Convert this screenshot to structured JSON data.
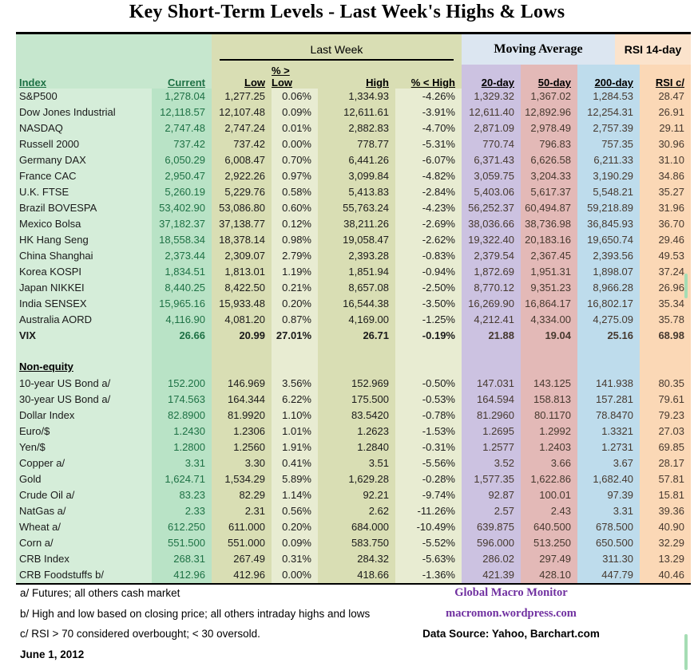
{
  "title": "Key Short-Term Levels -  Last Week's Highs & Lows",
  "table": {
    "groups": {
      "last_week": "Last Week",
      "moving_average": "Moving Average",
      "rsi": "RSI 14-day"
    },
    "columns": [
      "Index",
      "Current",
      "Low",
      "% > Low",
      "High",
      "% < High",
      "20-day",
      "50-day",
      "200-day",
      "RSI c/"
    ],
    "sections": [
      {
        "label": "",
        "rows": [
          [
            "S&P500",
            "1,278.04",
            "1,277.25",
            "0.06%",
            "1,334.93",
            "-4.26%",
            "1,329.32",
            "1,367.02",
            "1,284.53",
            "28.47"
          ],
          [
            "Dow Jones Industrial",
            "12,118.57",
            "12,107.48",
            "0.09%",
            "12,611.61",
            "-3.91%",
            "12,611.40",
            "12,892.96",
            "12,254.31",
            "26.91"
          ],
          [
            "NASDAQ",
            "2,747.48",
            "2,747.24",
            "0.01%",
            "2,882.83",
            "-4.70%",
            "2,871.09",
            "2,978.49",
            "2,757.39",
            "29.11"
          ],
          [
            "Russell 2000",
            "737.42",
            "737.42",
            "0.00%",
            "778.77",
            "-5.31%",
            "770.74",
            "796.83",
            "757.35",
            "30.96"
          ],
          [
            "Germany DAX",
            "6,050.29",
            "6,008.47",
            "0.70%",
            "6,441.26",
            "-6.07%",
            "6,371.43",
            "6,626.58",
            "6,211.33",
            "31.10"
          ],
          [
            "France CAC",
            "2,950.47",
            "2,922.26",
            "0.97%",
            "3,099.84",
            "-4.82%",
            "3,059.75",
            "3,204.33",
            "3,190.29",
            "34.86"
          ],
          [
            "U.K. FTSE",
            "5,260.19",
            "5,229.76",
            "0.58%",
            "5,413.83",
            "-2.84%",
            "5,403.06",
            "5,617.37",
            "5,548.21",
            "35.27"
          ],
          [
            "Brazil BOVESPA",
            "53,402.90",
            "53,086.80",
            "0.60%",
            "55,763.24",
            "-4.23%",
            "56,252.37",
            "60,494.87",
            "59,218.89",
            "31.96"
          ],
          [
            "Mexico Bolsa",
            "37,182.37",
            "37,138.77",
            "0.12%",
            "38,211.26",
            "-2.69%",
            "38,036.66",
            "38,736.98",
            "36,845.93",
            "36.70"
          ],
          [
            "HK  Hang Seng",
            "18,558.34",
            "18,378.14",
            "0.98%",
            "19,058.47",
            "-2.62%",
            "19,322.40",
            "20,183.16",
            "19,650.74",
            "29.46"
          ],
          [
            "China Shanghai",
            "2,373.44",
            "2,309.07",
            "2.79%",
            "2,393.28",
            "-0.83%",
            "2,379.54",
            "2,367.45",
            "2,393.56",
            "49.53"
          ],
          [
            "Korea KOSPI",
            "1,834.51",
            "1,813.01",
            "1.19%",
            "1,851.94",
            "-0.94%",
            "1,872.69",
            "1,951.31",
            "1,898.07",
            "37.24"
          ],
          [
            "Japan NIKKEI",
            "8,440.25",
            "8,422.50",
            "0.21%",
            "8,657.08",
            "-2.50%",
            "8,770.12",
            "9,351.23",
            "8,966.28",
            "26.96"
          ],
          [
            "India SENSEX",
            "15,965.16",
            "15,933.48",
            "0.20%",
            "16,544.38",
            "-3.50%",
            "16,269.90",
            "16,864.17",
            "16,802.17",
            "35.34"
          ],
          [
            "Australia AORD",
            "4,116.90",
            "4,081.20",
            "0.87%",
            "4,169.00",
            "-1.25%",
            "4,212.41",
            "4,334.00",
            "4,275.09",
            "35.78"
          ],
          [
            "VIX",
            "26.66",
            "20.99",
            "27.01%",
            "26.71",
            "-0.19%",
            "21.88",
            "19.04",
            "25.16",
            "68.98"
          ]
        ]
      },
      {
        "label": "Non-equity",
        "rows": [
          [
            "10-year US Bond  a/",
            "152.200",
            "146.969",
            "3.56%",
            "152.969",
            "-0.50%",
            "147.031",
            "143.125",
            "141.938",
            "80.35"
          ],
          [
            "30-year US Bond  a/",
            "174.563",
            "164.344",
            "6.22%",
            "175.500",
            "-0.53%",
            "164.594",
            "158.813",
            "157.281",
            "79.61"
          ],
          [
            "Dollar Index",
            "82.8900",
            "81.9920",
            "1.10%",
            "83.5420",
            "-0.78%",
            "81.2960",
            "80.1170",
            "78.8470",
            "79.23"
          ],
          [
            "Euro/$",
            "1.2430",
            "1.2306",
            "1.01%",
            "1.2623",
            "-1.53%",
            "1.2695",
            "1.2992",
            "1.3321",
            "27.03"
          ],
          [
            "Yen/$",
            "1.2800",
            "1.2560",
            "1.91%",
            "1.2840",
            "-0.31%",
            "1.2577",
            "1.2403",
            "1.2731",
            "69.85"
          ],
          [
            "Copper  a/",
            "3.31",
            "3.30",
            "0.41%",
            "3.51",
            "-5.56%",
            "3.52",
            "3.66",
            "3.67",
            "28.17"
          ],
          [
            "Gold",
            "1,624.71",
            "1,534.29",
            "5.89%",
            "1,629.28",
            "-0.28%",
            "1,577.35",
            "1,622.86",
            "1,682.40",
            "57.81"
          ],
          [
            "Crude Oil  a/",
            "83.23",
            "82.29",
            "1.14%",
            "92.21",
            "-9.74%",
            "92.87",
            "100.01",
            "97.39",
            "15.81"
          ],
          [
            "NatGas  a/",
            "2.33",
            "2.31",
            "0.56%",
            "2.62",
            "-11.26%",
            "2.57",
            "2.43",
            "3.31",
            "39.36"
          ],
          [
            "Wheat  a/",
            "612.250",
            "611.000",
            "0.20%",
            "684.000",
            "-10.49%",
            "639.875",
            "640.500",
            "678.500",
            "40.90"
          ],
          [
            "Corn  a/",
            "551.500",
            "551.000",
            "0.09%",
            "583.750",
            "-5.52%",
            "596.000",
            "513.250",
            "650.500",
            "32.29"
          ],
          [
            "CRB Index",
            "268.31",
            "267.49",
            "0.31%",
            "284.32",
            "-5.63%",
            "286.02",
            "297.49",
            "311.30",
            "13.29"
          ],
          [
            "CRB Foodstuffs  b/",
            "412.96",
            "412.96",
            "0.00%",
            "418.66",
            "-1.36%",
            "421.39",
            "428.10",
            "447.79",
            "40.46"
          ]
        ]
      }
    ],
    "bold_rows": [
      "VIX"
    ]
  },
  "footnotes": [
    "a/  Futures; all others cash market",
    "b/  High and low based on closing price;  all others intraday highs and lows",
    "c/  RSI > 70 considered overbought;  < 30 oversold."
  ],
  "date": "June 1, 2012",
  "branding": {
    "name": "Global Macro Monitor",
    "url": "macromon.wordpress.com",
    "data_source": "Data Source: Yahoo, Barchart.com"
  },
  "colors": {
    "header_green": "#c6e7ce",
    "row_green": "#d5edd9",
    "current_mint": "#b9e3c6",
    "last_week_olive": "#d9deb4",
    "pct_pale_olive": "#e8ecd2",
    "ma_band_blue": "#dce6f1",
    "ma20_lavender": "#ccc2e1",
    "ma50_pink": "#e3b9b7",
    "ma200_blue": "#bedcec",
    "rsi_band_peach": "#fbe3cc",
    "rsi_col_peach": "#fbd8b6",
    "green_text": "#1e7145",
    "brand_purple": "#7030a0"
  }
}
